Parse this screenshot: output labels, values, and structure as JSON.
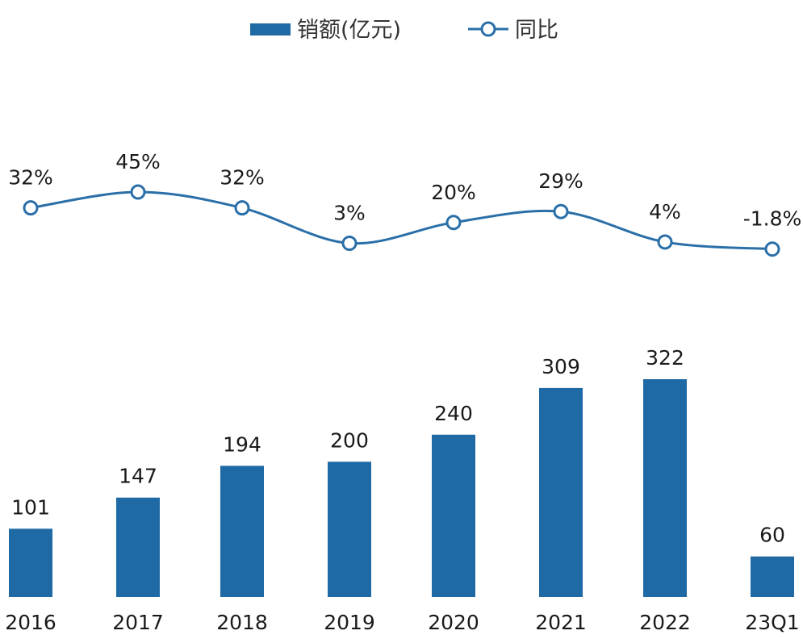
{
  "chart_data": {
    "type": "bar",
    "categories": [
      "2016",
      "2017",
      "2018",
      "2019",
      "2020",
      "2021",
      "2022",
      "23Q1"
    ],
    "series": [
      {
        "name": "销额(亿元)",
        "type": "bar",
        "values": [
          101,
          147,
          194,
          200,
          240,
          309,
          322,
          60
        ],
        "labels": [
          "101",
          "147",
          "194",
          "200",
          "240",
          "309",
          "322",
          "60"
        ]
      },
      {
        "name": "同比",
        "type": "line",
        "values": [
          32,
          45,
          32,
          3,
          20,
          29,
          4,
          -1.8
        ],
        "labels": [
          "32%",
          "45%",
          "32%",
          "3%",
          "20%",
          "29%",
          "4%",
          "-1.8%"
        ]
      }
    ],
    "title": "",
    "xlabel": "",
    "ylabel": "",
    "legend_position": "top-center",
    "grid": false
  },
  "legend": {
    "bar_label": "销额(亿元)",
    "line_label": "同比"
  },
  "colors": {
    "bar": "#1f6aa5",
    "line": "#2a6fa8",
    "marker_fill": "#ffffff"
  }
}
